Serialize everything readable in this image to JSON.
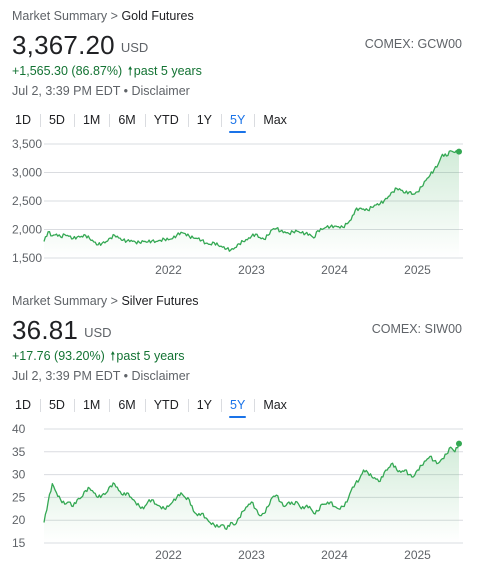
{
  "gold": {
    "breadcrumb_root": "Market Summary",
    "breadcrumb_sep": ">",
    "breadcrumb_current": "Gold Futures",
    "price": "3,367.20",
    "currency": "USD",
    "exchange": "COMEX: GCW00",
    "change": "+1,565.30 (86.87%)",
    "change_period": "past 5 years",
    "timestamp": "Jul 2, 3:39 PM EDT",
    "disclaimer": "Disclaimer",
    "tabs": [
      "1D",
      "5D",
      "1M",
      "6M",
      "YTD",
      "1Y",
      "5Y",
      "Max"
    ],
    "active_tab": "5Y",
    "chart_data": {
      "type": "area",
      "ylim": [
        1500,
        3500
      ],
      "y_ticks": [
        "1,500",
        "2,000",
        "2,500",
        "3,000",
        "3,500"
      ],
      "x_ticks": [
        "2022",
        "2023",
        "2024",
        "2025"
      ],
      "x": [
        2020.5,
        2020.55,
        2020.6,
        2020.65,
        2020.7,
        2020.75,
        2020.8,
        2020.85,
        2020.9,
        2020.95,
        2021.0,
        2021.05,
        2021.1,
        2021.15,
        2021.2,
        2021.25,
        2021.3,
        2021.35,
        2021.4,
        2021.45,
        2021.5,
        2021.55,
        2021.6,
        2021.65,
        2021.7,
        2021.75,
        2021.8,
        2021.85,
        2021.9,
        2021.95,
        2022.0,
        2022.05,
        2022.1,
        2022.15,
        2022.2,
        2022.25,
        2022.3,
        2022.35,
        2022.4,
        2022.45,
        2022.5,
        2022.55,
        2022.6,
        2022.65,
        2022.7,
        2022.75,
        2022.8,
        2022.85,
        2022.9,
        2022.95,
        2023.0,
        2023.05,
        2023.1,
        2023.15,
        2023.2,
        2023.25,
        2023.3,
        2023.35,
        2023.4,
        2023.45,
        2023.5,
        2023.55,
        2023.6,
        2023.65,
        2023.7,
        2023.75,
        2023.8,
        2023.85,
        2023.9,
        2023.95,
        2024.0,
        2024.05,
        2024.1,
        2024.15,
        2024.2,
        2024.25,
        2024.3,
        2024.35,
        2024.4,
        2024.45,
        2024.5,
        2024.55,
        2024.6,
        2024.65,
        2024.7,
        2024.75,
        2024.8,
        2024.85,
        2024.9,
        2024.95,
        2025.0,
        2025.05,
        2025.1,
        2025.15,
        2025.2,
        2025.25,
        2025.3,
        2025.35,
        2025.4,
        2025.45,
        2025.5
      ],
      "values": [
        1790,
        1960,
        1890,
        1920,
        1870,
        1910,
        1880,
        1840,
        1870,
        1880,
        1900,
        1840,
        1780,
        1730,
        1760,
        1790,
        1850,
        1900,
        1850,
        1810,
        1800,
        1810,
        1780,
        1770,
        1790,
        1780,
        1800,
        1790,
        1810,
        1830,
        1820,
        1840,
        1900,
        1950,
        1930,
        1880,
        1850,
        1840,
        1810,
        1760,
        1740,
        1770,
        1720,
        1690,
        1660,
        1640,
        1680,
        1750,
        1790,
        1820,
        1880,
        1920,
        1860,
        1830,
        1900,
        2000,
        2020,
        1970,
        1960,
        1930,
        1960,
        1970,
        1940,
        1930,
        1920,
        1850,
        1980,
        2000,
        2040,
        2050,
        2060,
        2050,
        2040,
        2100,
        2170,
        2340,
        2370,
        2360,
        2340,
        2390,
        2430,
        2450,
        2510,
        2580,
        2660,
        2720,
        2690,
        2640,
        2660,
        2620,
        2660,
        2750,
        2860,
        2950,
        3050,
        3150,
        3320,
        3290,
        3380,
        3350,
        3367.2
      ]
    }
  },
  "silver": {
    "breadcrumb_root": "Market Summary",
    "breadcrumb_sep": ">",
    "breadcrumb_current": "Silver Futures",
    "price": "36.81",
    "currency": "USD",
    "exchange": "COMEX: SIW00",
    "change": "+17.76 (93.20%)",
    "change_period": "past 5 years",
    "timestamp": "Jul 2, 3:39 PM EDT",
    "disclaimer": "Disclaimer",
    "tabs": [
      "1D",
      "5D",
      "1M",
      "6M",
      "YTD",
      "1Y",
      "5Y",
      "Max"
    ],
    "active_tab": "5Y",
    "chart_data": {
      "type": "area",
      "ylim": [
        15,
        40
      ],
      "y_ticks": [
        "15",
        "20",
        "25",
        "30",
        "35",
        "40"
      ],
      "x_ticks": [
        "2022",
        "2023",
        "2024",
        "2025"
      ],
      "x": [
        2020.5,
        2020.55,
        2020.6,
        2020.65,
        2020.7,
        2020.75,
        2020.8,
        2020.85,
        2020.9,
        2020.95,
        2021.0,
        2021.05,
        2021.1,
        2021.15,
        2021.2,
        2021.25,
        2021.3,
        2021.35,
        2021.4,
        2021.45,
        2021.5,
        2021.55,
        2021.6,
        2021.65,
        2021.7,
        2021.75,
        2021.8,
        2021.85,
        2021.9,
        2021.95,
        2022.0,
        2022.05,
        2022.1,
        2022.15,
        2022.2,
        2022.25,
        2022.3,
        2022.35,
        2022.4,
        2022.45,
        2022.5,
        2022.55,
        2022.6,
        2022.65,
        2022.7,
        2022.75,
        2022.8,
        2022.85,
        2022.9,
        2022.95,
        2023.0,
        2023.05,
        2023.1,
        2023.15,
        2023.2,
        2023.25,
        2023.3,
        2023.35,
        2023.4,
        2023.45,
        2023.5,
        2023.55,
        2023.6,
        2023.65,
        2023.7,
        2023.75,
        2023.8,
        2023.85,
        2023.9,
        2023.95,
        2024.0,
        2024.05,
        2024.1,
        2024.15,
        2024.2,
        2024.25,
        2024.3,
        2024.35,
        2024.4,
        2024.45,
        2024.5,
        2024.55,
        2024.6,
        2024.65,
        2024.7,
        2024.75,
        2024.8,
        2024.85,
        2024.9,
        2024.95,
        2025.0,
        2025.05,
        2025.1,
        2025.15,
        2025.2,
        2025.25,
        2025.3,
        2025.35,
        2025.4,
        2025.45,
        2025.5
      ],
      "values": [
        19.5,
        24,
        28,
        26,
        24.5,
        23.5,
        24,
        23,
        24.5,
        25,
        26.5,
        27,
        26,
        25,
        25.5,
        26,
        27.5,
        28,
        26.5,
        25.5,
        26,
        25,
        24,
        23,
        22.5,
        24,
        24.5,
        23.5,
        23,
        22.5,
        23,
        24,
        25,
        26,
        25,
        24.5,
        22,
        21,
        21.5,
        20.5,
        19.5,
        19,
        18.5,
        19,
        18,
        19.5,
        19,
        20.5,
        22,
        23,
        24,
        22.5,
        21,
        21.5,
        23,
        25,
        25.5,
        24,
        23,
        24,
        23.5,
        24,
        22.5,
        23,
        23,
        21.5,
        22,
        23.5,
        23.5,
        24,
        23,
        22.5,
        23,
        24,
        26.5,
        28,
        29,
        31,
        30.5,
        29.5,
        29,
        28.5,
        30.5,
        31.5,
        32.5,
        31,
        30.5,
        31,
        30,
        29.5,
        31,
        32,
        33,
        34,
        33,
        32.5,
        33.5,
        34.5,
        36,
        35,
        36.8
      ]
    }
  },
  "colors": {
    "line": "#34a853",
    "fill": "#34a853",
    "grid": "#dadce0",
    "accent": "#1a73e8",
    "positive": "#137333"
  }
}
